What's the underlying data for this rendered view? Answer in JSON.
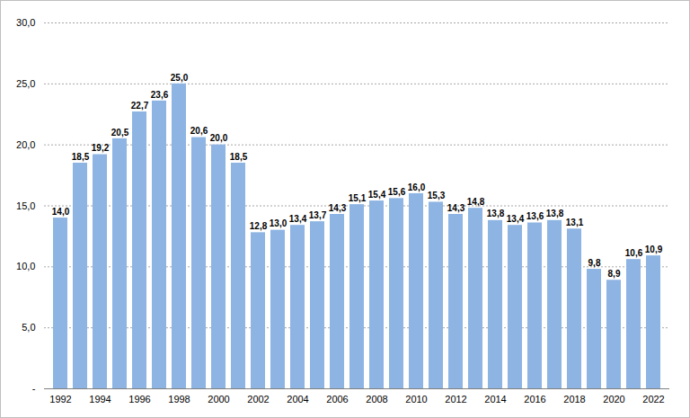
{
  "chart_data": {
    "type": "bar",
    "categories": [
      "1992",
      null,
      "1994",
      null,
      "1996",
      null,
      "1998",
      null,
      "2000",
      null,
      "2002",
      null,
      "2004",
      null,
      "2006",
      null,
      "2008",
      null,
      "2010",
      null,
      "2012",
      null,
      "2014",
      null,
      "2016",
      null,
      "2018",
      null,
      "2020",
      null,
      "2022"
    ],
    "values": [
      14.0,
      18.5,
      19.2,
      20.5,
      22.7,
      23.6,
      25.0,
      20.6,
      20.0,
      18.5,
      12.8,
      13.0,
      13.4,
      13.7,
      14.3,
      15.1,
      15.4,
      15.6,
      16.0,
      15.3,
      14.3,
      14.8,
      13.8,
      13.4,
      13.6,
      13.8,
      13.1,
      9.8,
      8.9,
      10.6,
      10.9
    ],
    "value_labels": [
      "14,0",
      "18,5",
      "19,2",
      "20,5",
      "22,7",
      "23,6",
      "25,0",
      "20,6",
      "20,0",
      "18,5",
      "12,8",
      "13,0",
      "13,4",
      "13,7",
      "14,3",
      "15,1",
      "15,4",
      "15,6",
      "16,0",
      "15,3",
      "14,3",
      "14,8",
      "13,8",
      "13,4",
      "13,6",
      "13,8",
      "13,1",
      "9,8",
      "8,9",
      "10,6",
      "10,9"
    ],
    "color": "#8db4e2",
    "ylim": [
      0,
      30
    ],
    "yticks": [
      {
        "value": 0,
        "label": "-"
      },
      {
        "value": 5,
        "label": "5,0"
      },
      {
        "value": 10,
        "label": "10,0"
      },
      {
        "value": 15,
        "label": "15,0"
      },
      {
        "value": 20,
        "label": "20,0"
      },
      {
        "value": 25,
        "label": "25,0"
      },
      {
        "value": 30,
        "label": "30,0"
      }
    ],
    "grid": true,
    "data_labels": true
  }
}
